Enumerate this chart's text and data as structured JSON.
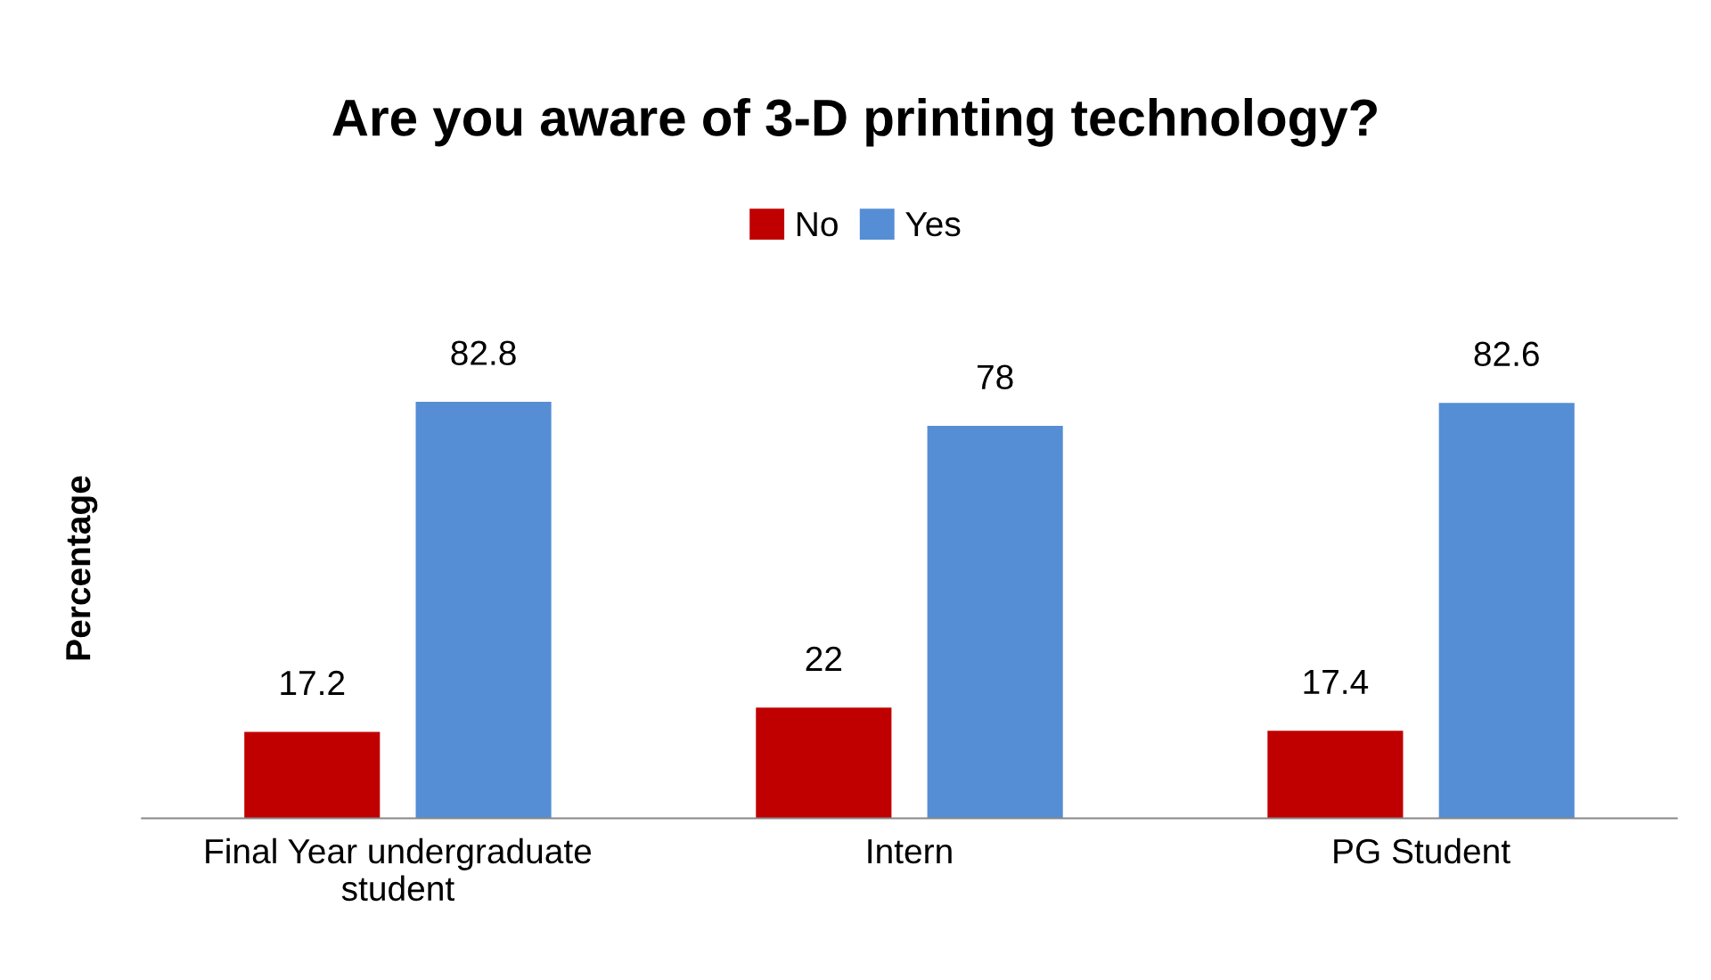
{
  "chart_data": {
    "type": "bar",
    "title": "Are you aware of 3-D printing technology?",
    "ylabel": "Percentage",
    "categories": [
      "Final Year undergraduate\nstudent",
      "Intern",
      "PG Student"
    ],
    "series": [
      {
        "name": "No",
        "color": "#c00000",
        "values": [
          17.2,
          22,
          17.4
        ]
      },
      {
        "name": "Yes",
        "color": "#558ed5",
        "values": [
          82.8,
          78,
          82.6
        ]
      }
    ],
    "data_labels": true,
    "legend": "top",
    "grid": false
  }
}
